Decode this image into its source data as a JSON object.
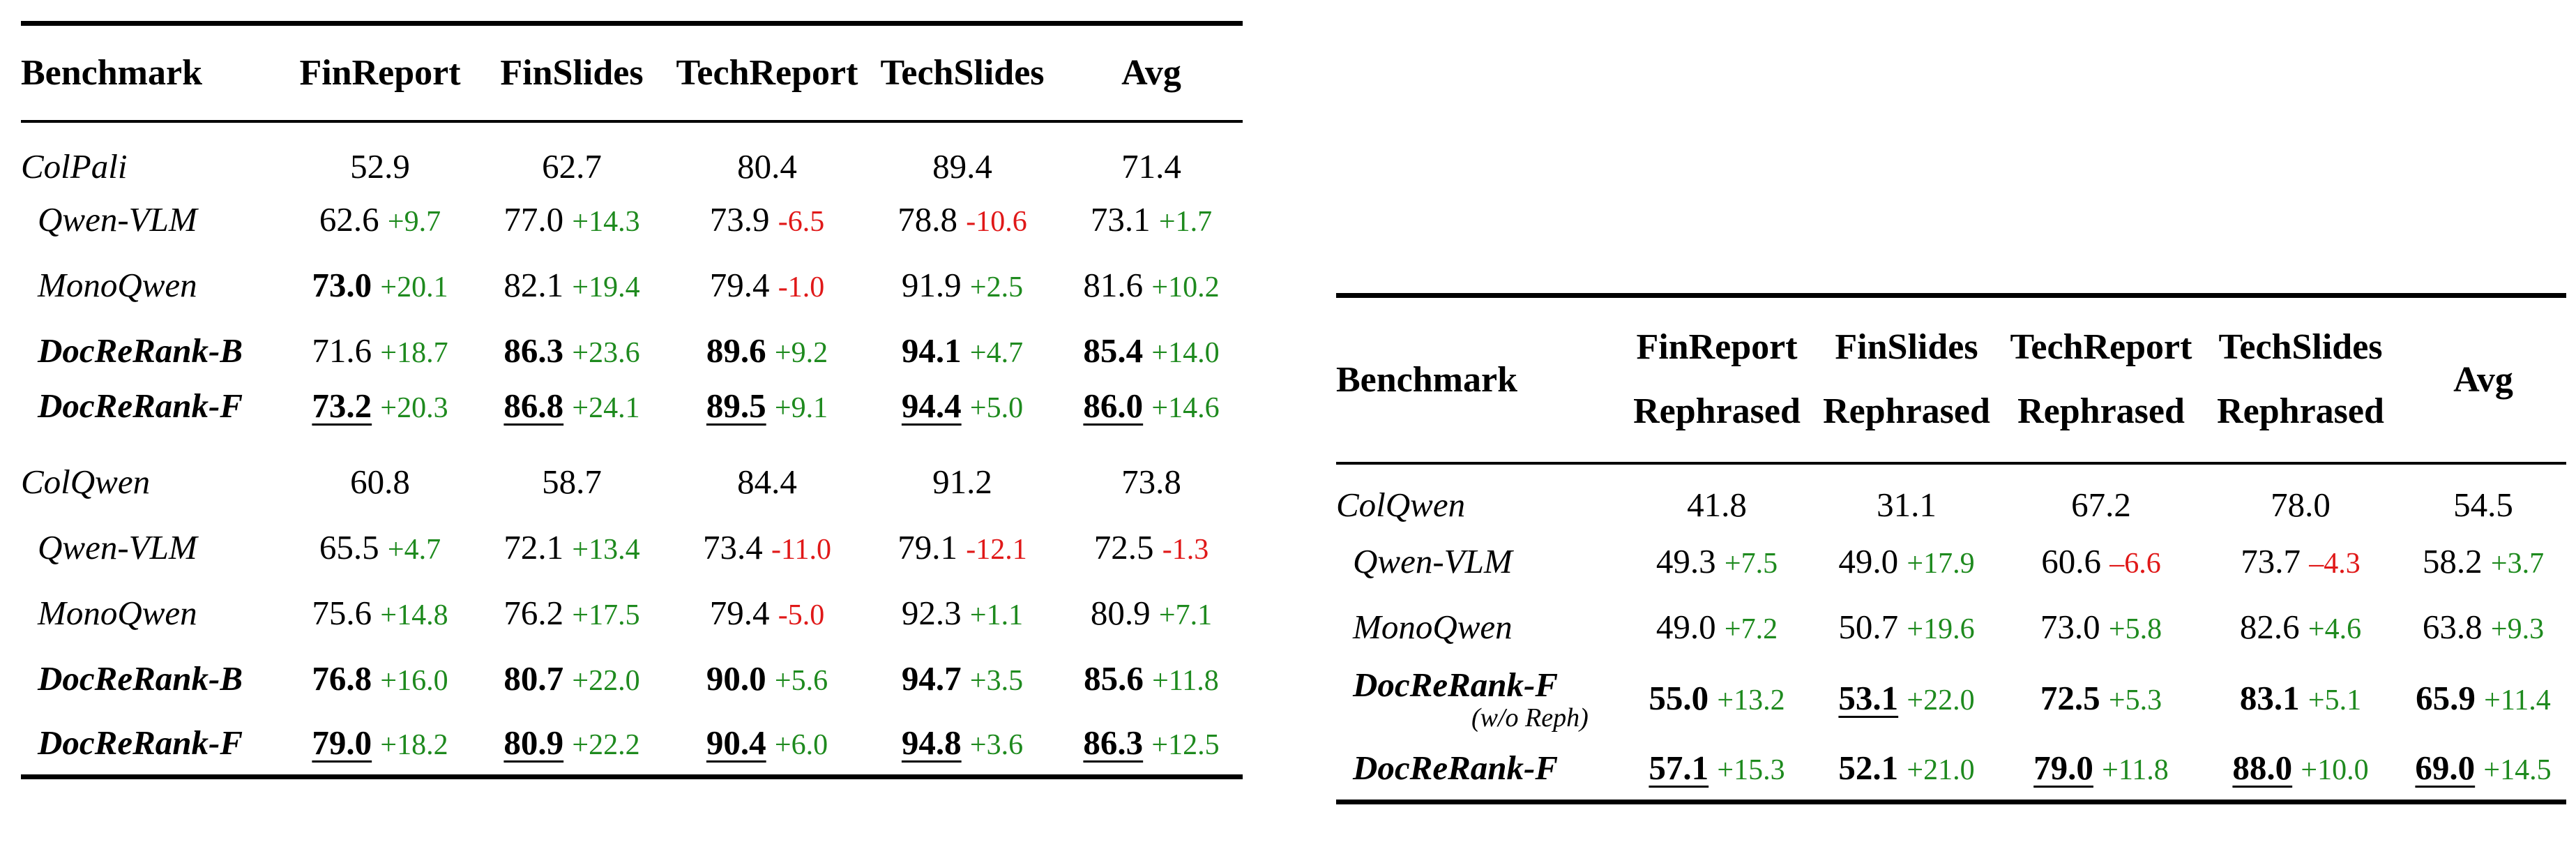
{
  "left_table": {
    "headers": [
      "Benchmark",
      "FinReport",
      "FinSlides",
      "TechReport",
      "TechSlides",
      "Avg"
    ],
    "groups": [
      {
        "baseline": {
          "name": "ColPali",
          "values": [
            "52.9",
            "62.7",
            "80.4",
            "89.4",
            "71.4"
          ]
        },
        "rows": [
          {
            "name": "Qwen-VLM",
            "name_bold": false,
            "cells": [
              {
                "v": "62.6",
                "d": "+9.7",
                "neg": false,
                "bold": false,
                "ul": false
              },
              {
                "v": "77.0",
                "d": "+14.3",
                "neg": false,
                "bold": false,
                "ul": false
              },
              {
                "v": "73.9",
                "d": "-6.5",
                "neg": true,
                "bold": false,
                "ul": false
              },
              {
                "v": "78.8",
                "d": "-10.6",
                "neg": true,
                "bold": false,
                "ul": false
              },
              {
                "v": "73.1",
                "d": "+1.7",
                "neg": false,
                "bold": false,
                "ul": false
              }
            ]
          },
          {
            "name": "MonoQwen",
            "name_bold": false,
            "cells": [
              {
                "v": "73.0",
                "d": "+20.1",
                "neg": false,
                "bold": true,
                "ul": false
              },
              {
                "v": "82.1",
                "d": "+19.4",
                "neg": false,
                "bold": false,
                "ul": false
              },
              {
                "v": "79.4",
                "d": "-1.0",
                "neg": true,
                "bold": false,
                "ul": false
              },
              {
                "v": "91.9",
                "d": "+2.5",
                "neg": false,
                "bold": false,
                "ul": false
              },
              {
                "v": "81.6",
                "d": "+10.2",
                "neg": false,
                "bold": false,
                "ul": false
              }
            ]
          },
          {
            "name": "DocReRank-B",
            "name_bold": true,
            "cells": [
              {
                "v": "71.6",
                "d": "+18.7",
                "neg": false,
                "bold": false,
                "ul": false
              },
              {
                "v": "86.3",
                "d": "+23.6",
                "neg": false,
                "bold": true,
                "ul": false
              },
              {
                "v": "89.6",
                "d": "+9.2",
                "neg": false,
                "bold": true,
                "ul": false
              },
              {
                "v": "94.1",
                "d": "+4.7",
                "neg": false,
                "bold": true,
                "ul": false
              },
              {
                "v": "85.4",
                "d": "+14.0",
                "neg": false,
                "bold": true,
                "ul": false
              }
            ]
          },
          {
            "name": "DocReRank-F",
            "name_bold": true,
            "cells": [
              {
                "v": "73.2",
                "d": "+20.3",
                "neg": false,
                "bold": true,
                "ul": true
              },
              {
                "v": "86.8",
                "d": "+24.1",
                "neg": false,
                "bold": true,
                "ul": true
              },
              {
                "v": "89.5",
                "d": "+9.1",
                "neg": false,
                "bold": true,
                "ul": true
              },
              {
                "v": "94.4",
                "d": "+5.0",
                "neg": false,
                "bold": true,
                "ul": true
              },
              {
                "v": "86.0",
                "d": "+14.6",
                "neg": false,
                "bold": true,
                "ul": true
              }
            ]
          }
        ]
      },
      {
        "baseline": {
          "name": "ColQwen",
          "values": [
            "60.8",
            "58.7",
            "84.4",
            "91.2",
            "73.8"
          ]
        },
        "rows": [
          {
            "name": "Qwen-VLM",
            "name_bold": false,
            "cells": [
              {
                "v": "65.5",
                "d": "+4.7",
                "neg": false,
                "bold": false,
                "ul": false
              },
              {
                "v": "72.1",
                "d": "+13.4",
                "neg": false,
                "bold": false,
                "ul": false
              },
              {
                "v": "73.4",
                "d": "-11.0",
                "neg": true,
                "bold": false,
                "ul": false
              },
              {
                "v": "79.1",
                "d": "-12.1",
                "neg": true,
                "bold": false,
                "ul": false
              },
              {
                "v": "72.5",
                "d": "-1.3",
                "neg": true,
                "bold": false,
                "ul": false
              }
            ]
          },
          {
            "name": "MonoQwen",
            "name_bold": false,
            "cells": [
              {
                "v": "75.6",
                "d": "+14.8",
                "neg": false,
                "bold": false,
                "ul": false
              },
              {
                "v": "76.2",
                "d": "+17.5",
                "neg": false,
                "bold": false,
                "ul": false
              },
              {
                "v": "79.4",
                "d": "-5.0",
                "neg": true,
                "bold": false,
                "ul": false
              },
              {
                "v": "92.3",
                "d": "+1.1",
                "neg": false,
                "bold": false,
                "ul": false
              },
              {
                "v": "80.9",
                "d": "+7.1",
                "neg": false,
                "bold": false,
                "ul": false
              }
            ]
          },
          {
            "name": "DocReRank-B",
            "name_bold": true,
            "cells": [
              {
                "v": "76.8",
                "d": "+16.0",
                "neg": false,
                "bold": true,
                "ul": false
              },
              {
                "v": "80.7",
                "d": "+22.0",
                "neg": false,
                "bold": true,
                "ul": false
              },
              {
                "v": "90.0",
                "d": "+5.6",
                "neg": false,
                "bold": true,
                "ul": false
              },
              {
                "v": "94.7",
                "d": "+3.5",
                "neg": false,
                "bold": true,
                "ul": false
              },
              {
                "v": "85.6",
                "d": "+11.8",
                "neg": false,
                "bold": true,
                "ul": false
              }
            ]
          },
          {
            "name": "DocReRank-F",
            "name_bold": true,
            "cells": [
              {
                "v": "79.0",
                "d": "+18.2",
                "neg": false,
                "bold": true,
                "ul": true
              },
              {
                "v": "80.9",
                "d": "+22.2",
                "neg": false,
                "bold": true,
                "ul": true
              },
              {
                "v": "90.4",
                "d": "+6.0",
                "neg": false,
                "bold": true,
                "ul": true
              },
              {
                "v": "94.8",
                "d": "+3.6",
                "neg": false,
                "bold": true,
                "ul": true
              },
              {
                "v": "86.3",
                "d": "+12.5",
                "neg": false,
                "bold": true,
                "ul": true
              }
            ]
          }
        ]
      }
    ]
  },
  "right_table": {
    "headers": [
      {
        "line1": "Benchmark",
        "line2": ""
      },
      {
        "line1": "FinReport",
        "line2": "Rephrased"
      },
      {
        "line1": "FinSlides",
        "line2": "Rephrased"
      },
      {
        "line1": "TechReport",
        "line2": "Rephrased"
      },
      {
        "line1": "TechSlides",
        "line2": "Rephrased"
      },
      {
        "line1": "Avg",
        "line2": ""
      }
    ],
    "baseline": {
      "name": "ColQwen",
      "values": [
        "41.8",
        "31.1",
        "67.2",
        "78.0",
        "54.5"
      ]
    },
    "rows": [
      {
        "name": "Qwen-VLM",
        "name_bold": false,
        "note": "",
        "cells": [
          {
            "v": "49.3",
            "d": "+7.5",
            "neg": false,
            "bold": false,
            "ul": false
          },
          {
            "v": "49.0",
            "d": "+17.9",
            "neg": false,
            "bold": false,
            "ul": false
          },
          {
            "v": "60.6",
            "d": "–6.6",
            "neg": true,
            "bold": false,
            "ul": false
          },
          {
            "v": "73.7",
            "d": "–4.3",
            "neg": true,
            "bold": false,
            "ul": false
          },
          {
            "v": "58.2",
            "d": "+3.7",
            "neg": false,
            "bold": false,
            "ul": false
          }
        ]
      },
      {
        "name": "MonoQwen",
        "name_bold": false,
        "note": "",
        "cells": [
          {
            "v": "49.0",
            "d": "+7.2",
            "neg": false,
            "bold": false,
            "ul": false
          },
          {
            "v": "50.7",
            "d": "+19.6",
            "neg": false,
            "bold": false,
            "ul": false
          },
          {
            "v": "73.0",
            "d": "+5.8",
            "neg": false,
            "bold": false,
            "ul": false
          },
          {
            "v": "82.6",
            "d": "+4.6",
            "neg": false,
            "bold": false,
            "ul": false
          },
          {
            "v": "63.8",
            "d": "+9.3",
            "neg": false,
            "bold": false,
            "ul": false
          }
        ]
      },
      {
        "name": "DocReRank-F",
        "name_bold": true,
        "note": "(w/o Reph)",
        "cells": [
          {
            "v": "55.0",
            "d": "+13.2",
            "neg": false,
            "bold": true,
            "ul": false
          },
          {
            "v": "53.1",
            "d": "+22.0",
            "neg": false,
            "bold": true,
            "ul": true
          },
          {
            "v": "72.5",
            "d": "+5.3",
            "neg": false,
            "bold": true,
            "ul": false
          },
          {
            "v": "83.1",
            "d": "+5.1",
            "neg": false,
            "bold": true,
            "ul": false
          },
          {
            "v": "65.9",
            "d": "+11.4",
            "neg": false,
            "bold": true,
            "ul": false
          }
        ]
      },
      {
        "name": "DocReRank-F",
        "name_bold": true,
        "note": "",
        "cells": [
          {
            "v": "57.1",
            "d": "+15.3",
            "neg": false,
            "bold": true,
            "ul": true
          },
          {
            "v": "52.1",
            "d": "+21.0",
            "neg": false,
            "bold": true,
            "ul": false
          },
          {
            "v": "79.0",
            "d": "+11.8",
            "neg": false,
            "bold": true,
            "ul": true
          },
          {
            "v": "88.0",
            "d": "+10.0",
            "neg": false,
            "bold": true,
            "ul": true
          },
          {
            "v": "69.0",
            "d": "+14.5",
            "neg": false,
            "bold": true,
            "ul": true
          }
        ]
      }
    ]
  }
}
